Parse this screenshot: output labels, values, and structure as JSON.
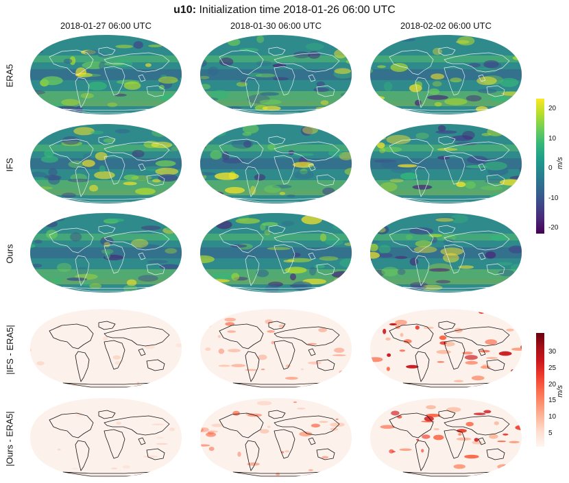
{
  "title": {
    "variable": "u10:",
    "text": "Initialization time 2018-01-26 06:00 UTC"
  },
  "columns": [
    "2018-01-27 06:00 UTC",
    "2018-01-30 06:00 UTC",
    "2018-02-02 06:00 UTC"
  ],
  "rows": [
    {
      "label": "ERA5",
      "kind": "field"
    },
    {
      "label": "IFS",
      "kind": "field"
    },
    {
      "label": "Ours",
      "kind": "field"
    },
    {
      "label": "|IFS - ERA5|",
      "kind": "error"
    },
    {
      "label": "|Ours - ERA5|",
      "kind": "error"
    }
  ],
  "colorbars": {
    "field": {
      "unit": "m/s",
      "ticks": [
        "20",
        "10",
        "0",
        "-10",
        "-20"
      ],
      "colormap": "viridis",
      "min": -23,
      "max": 24
    },
    "error": {
      "unit": "m/s",
      "ticks": [
        "30",
        "25",
        "20",
        "15",
        "10",
        "5"
      ],
      "colormap": "reds",
      "min": 0,
      "max": 35
    }
  },
  "colors": {
    "field_base": "#2f8a8c",
    "land_outline_field": "#e8f0f0",
    "land_outline_error": "#111111",
    "error_base": "#fdf1ec"
  }
}
